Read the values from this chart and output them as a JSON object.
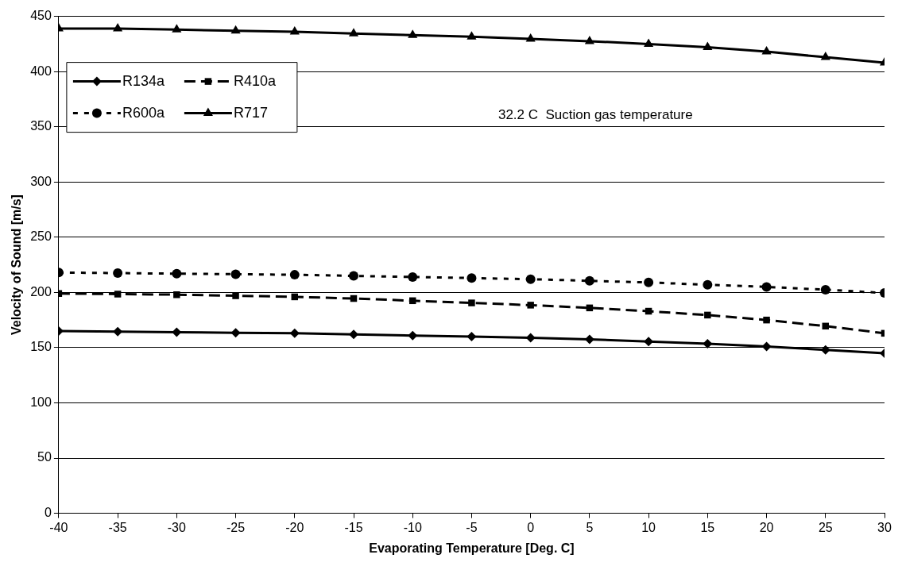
{
  "chart_data": {
    "type": "line",
    "xlabel": "Evaporating Temperature [Deg. C]",
    "ylabel": "Velocity of Sound [m/s]",
    "x": [
      -40,
      -35,
      -30,
      -25,
      -20,
      -15,
      -10,
      -5,
      0,
      5,
      10,
      15,
      20,
      25,
      30
    ],
    "series": [
      {
        "name": "R134a",
        "color": "#000000",
        "marker": "diamond",
        "line_style": "solid",
        "values": [
          165,
          164.5,
          164,
          163.5,
          163,
          162,
          161,
          160,
          159,
          157.5,
          155.5,
          153.5,
          151,
          148,
          145
        ]
      },
      {
        "name": "R410a",
        "color": "#000000",
        "marker": "square",
        "line_style": "dashed",
        "values": [
          199,
          198.5,
          198,
          197,
          196,
          194.5,
          192.5,
          190.5,
          188.5,
          186,
          183,
          179.5,
          175,
          169.5,
          163
        ]
      },
      {
        "name": "R600a",
        "color": "#000000",
        "marker": "circle",
        "line_style": "dotted",
        "values": [
          218,
          217.5,
          217,
          216.5,
          216,
          215,
          214,
          213,
          212,
          210.5,
          209,
          207,
          205,
          202.5,
          199.5
        ]
      },
      {
        "name": "R717",
        "color": "#000000",
        "marker": "triangle",
        "line_style": "solid",
        "values": [
          439,
          439,
          438,
          437,
          436,
          434.5,
          433,
          431.5,
          429.5,
          427.5,
          425,
          422,
          418,
          413,
          408
        ]
      }
    ],
    "xlim": [
      -40,
      30
    ],
    "xticks": [
      -40,
      -35,
      -30,
      -25,
      -20,
      -15,
      -10,
      -5,
      0,
      5,
      10,
      15,
      20,
      25,
      30
    ],
    "ylim": [
      0,
      450
    ],
    "yticks": [
      0,
      50,
      100,
      150,
      200,
      250,
      300,
      350,
      400,
      450
    ],
    "grid": "y",
    "legend": "top left",
    "annotations": [
      "32.2 C  Suction gas temperature"
    ]
  }
}
